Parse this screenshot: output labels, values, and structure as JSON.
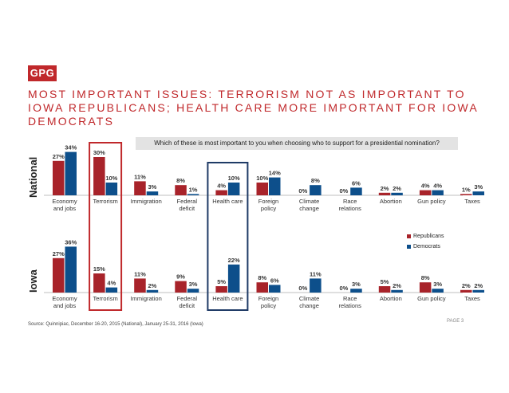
{
  "logo": "GPG",
  "title": "MOST IMPORTANT ISSUES: TERRORISM NOT AS IMPORTANT TO IOWA REPUBLICANS; HEALTH CARE MORE IMPORTANT FOR IOWA DEMOCRATS",
  "question": "Which of these is most important to you when choosing who to support for a presidential nomination?",
  "source": "Source: Quinnipiac, December 16-20, 2015 (National), January 25-31, 2016 (Iowa)",
  "page_label": "PAGE 3",
  "colors": {
    "republicans": "#a8232a",
    "democrats": "#0d4f8b",
    "highlight_red": "#c0282b",
    "highlight_blue": "#1f3b66"
  },
  "legend": {
    "republicans": "Republicans",
    "democrats": "Democrats"
  },
  "chart_data": [
    {
      "type": "bar",
      "title": "National",
      "categories": [
        "Economy and jobs",
        "Terrorism",
        "Immigration",
        "Federal deficit",
        "Health care",
        "Foreign policy",
        "Climate change",
        "Race relations",
        "Abortion",
        "Gun policy",
        "Taxes"
      ],
      "series": [
        {
          "name": "Republicans",
          "values": [
            27,
            30,
            11,
            8,
            4,
            10,
            0,
            0,
            2,
            4,
            1
          ]
        },
        {
          "name": "Democrats",
          "values": [
            34,
            10,
            3,
            1,
            10,
            14,
            8,
            6,
            2,
            4,
            3
          ]
        }
      ],
      "ylim": [
        0,
        40
      ]
    },
    {
      "type": "bar",
      "title": "Iowa",
      "categories": [
        "Economy and jobs",
        "Terrorism",
        "Immigration",
        "Federal deficit",
        "Health care",
        "Foreign policy",
        "Climate change",
        "Race relations",
        "Abortion",
        "Gun policy",
        "Taxes"
      ],
      "series": [
        {
          "name": "Republicans",
          "values": [
            27,
            15,
            11,
            9,
            5,
            8,
            0,
            0,
            5,
            8,
            2
          ]
        },
        {
          "name": "Democrats",
          "values": [
            36,
            4,
            2,
            3,
            22,
            6,
            11,
            3,
            2,
            3,
            2
          ]
        }
      ],
      "ylim": [
        0,
        40
      ]
    }
  ],
  "category_labels": [
    [
      "Economy",
      "and jobs"
    ],
    [
      "Terrorism"
    ],
    [
      "Immigration"
    ],
    [
      "Federal",
      "deficit"
    ],
    [
      "Health care"
    ],
    [
      "Foreign",
      "policy"
    ],
    [
      "Climate",
      "change"
    ],
    [
      "Race",
      "relations"
    ],
    [
      "Abortion"
    ],
    [
      "Gun policy"
    ],
    [
      "Taxes"
    ]
  ]
}
